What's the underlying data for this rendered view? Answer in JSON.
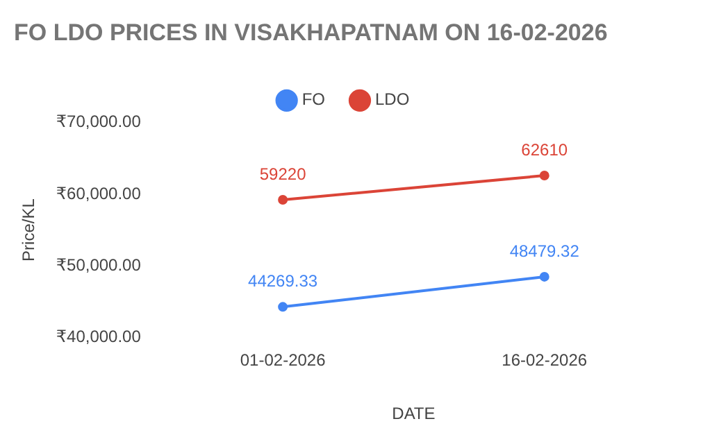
{
  "chart_data": {
    "type": "line",
    "title": "FO LDO PRICES IN VISAKHAPATNAM ON 16-02-2026",
    "xlabel": "DATE",
    "ylabel": "Price/KL",
    "categories": [
      "01-02-2026",
      "16-02-2026"
    ],
    "series": [
      {
        "name": "FO",
        "color": "#4285f4",
        "values": [
          44269.33,
          48479.32
        ]
      },
      {
        "name": "LDO",
        "color": "#db4437",
        "values": [
          59220,
          62610
        ]
      }
    ],
    "ylim": [
      40000,
      70000
    ],
    "yticks": [
      {
        "value": 40000,
        "label": "₹40,000.00"
      },
      {
        "value": 50000,
        "label": "₹50,000.00"
      },
      {
        "value": 60000,
        "label": "₹60,000.00"
      },
      {
        "value": 70000,
        "label": "₹70,000.00"
      }
    ],
    "grid": false,
    "legend": "top",
    "marker": "circle",
    "line_style": "solid",
    "data_labels": true
  }
}
